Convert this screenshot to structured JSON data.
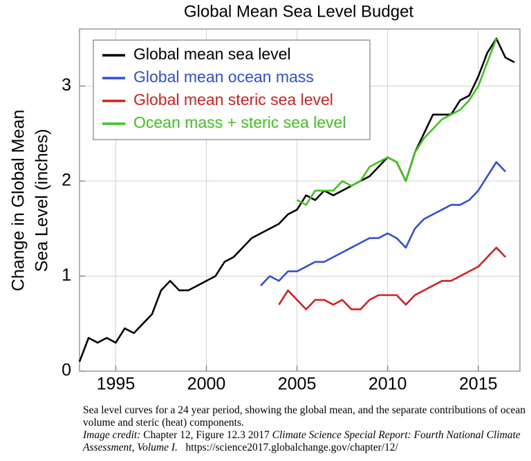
{
  "chart_data": {
    "type": "line",
    "title": "Global Mean Sea Level Budget",
    "y_label": [
      "Change in Global Mean",
      "Sea Level (inches)"
    ],
    "x": [
      1993,
      1993.5,
      1994,
      1994.5,
      1995,
      1995.5,
      1996,
      1996.5,
      1997,
      1997.5,
      1998,
      1998.5,
      1999,
      1999.5,
      2000,
      2000.5,
      2001,
      2001.5,
      2002,
      2002.5,
      2003,
      2003.5,
      2004,
      2004.5,
      2005,
      2005.5,
      2006,
      2006.5,
      2007,
      2007.5,
      2008,
      2008.5,
      2009,
      2009.5,
      2010,
      2010.5,
      2011,
      2011.5,
      2012,
      2012.5,
      2013,
      2013.5,
      2014,
      2014.5,
      2015,
      2015.5,
      2016,
      2016.5,
      2017
    ],
    "series": [
      {
        "name": "Global mean sea level",
        "color": "#000000",
        "values": [
          0.1,
          0.35,
          0.3,
          0.35,
          0.3,
          0.45,
          0.4,
          0.5,
          0.6,
          0.85,
          0.95,
          0.85,
          0.85,
          0.9,
          0.95,
          1.0,
          1.15,
          1.2,
          1.3,
          1.4,
          1.45,
          1.5,
          1.55,
          1.65,
          1.7,
          1.85,
          1.8,
          1.9,
          1.85,
          1.9,
          1.95,
          2.0,
          2.05,
          2.15,
          2.25,
          2.2,
          2.0,
          2.3,
          2.5,
          2.7,
          2.7,
          2.7,
          2.85,
          2.9,
          3.1,
          3.35,
          3.5,
          3.3,
          3.25
        ]
      },
      {
        "name": "Global mean ocean mass",
        "color": "#2f4fd8",
        "values": [
          null,
          null,
          null,
          null,
          null,
          null,
          null,
          null,
          null,
          null,
          null,
          null,
          null,
          null,
          null,
          null,
          null,
          null,
          null,
          null,
          0.9,
          1.0,
          0.95,
          1.05,
          1.05,
          1.1,
          1.15,
          1.15,
          1.2,
          1.25,
          1.3,
          1.35,
          1.4,
          1.4,
          1.45,
          1.4,
          1.3,
          1.5,
          1.6,
          1.65,
          1.7,
          1.75,
          1.75,
          1.8,
          1.9,
          2.05,
          2.2,
          2.1,
          null
        ]
      },
      {
        "name": "Global mean steric sea level",
        "color": "#d62020",
        "values": [
          null,
          null,
          null,
          null,
          null,
          null,
          null,
          null,
          null,
          null,
          null,
          null,
          null,
          null,
          null,
          null,
          null,
          null,
          null,
          null,
          null,
          null,
          0.7,
          0.85,
          0.75,
          0.65,
          0.75,
          0.75,
          0.7,
          0.75,
          0.65,
          0.65,
          0.75,
          0.8,
          0.8,
          0.8,
          0.7,
          0.8,
          0.85,
          0.9,
          0.95,
          0.95,
          1.0,
          1.05,
          1.1,
          1.2,
          1.3,
          1.2,
          null
        ]
      },
      {
        "name": "Ocean mass + steric sea level",
        "color": "#3fc41c",
        "values": [
          null,
          null,
          null,
          null,
          null,
          null,
          null,
          null,
          null,
          null,
          null,
          null,
          null,
          null,
          null,
          null,
          null,
          null,
          null,
          null,
          null,
          null,
          null,
          null,
          1.8,
          1.75,
          1.9,
          1.9,
          1.9,
          2.0,
          1.95,
          2.0,
          2.15,
          2.2,
          2.25,
          2.2,
          2.0,
          2.3,
          2.45,
          2.55,
          2.65,
          2.7,
          2.75,
          2.85,
          3.0,
          3.25,
          3.5,
          null,
          null
        ]
      }
    ],
    "xlim": [
      1993,
      2017.3
    ],
    "ylim": [
      0,
      3.6
    ],
    "xticks": [
      1995,
      2000,
      2005,
      2010,
      2015
    ],
    "yticks": [
      0,
      1,
      2,
      3
    ],
    "grid": true,
    "legend": "upper left"
  },
  "caption": {
    "text": "Sea level curves for a 24 year period, showing the global mean, and the separate contributions of ocean volume and steric (heat) components.",
    "credit_label": "Image credit:",
    "credit_text": "Chapter 12, Figure 12.3 2017",
    "credit_title": "Climate Science Special Report: Fourth National Climate Assessment, Volume I.",
    "url": "https://science2017.globalchange.gov/chapter/12/"
  }
}
